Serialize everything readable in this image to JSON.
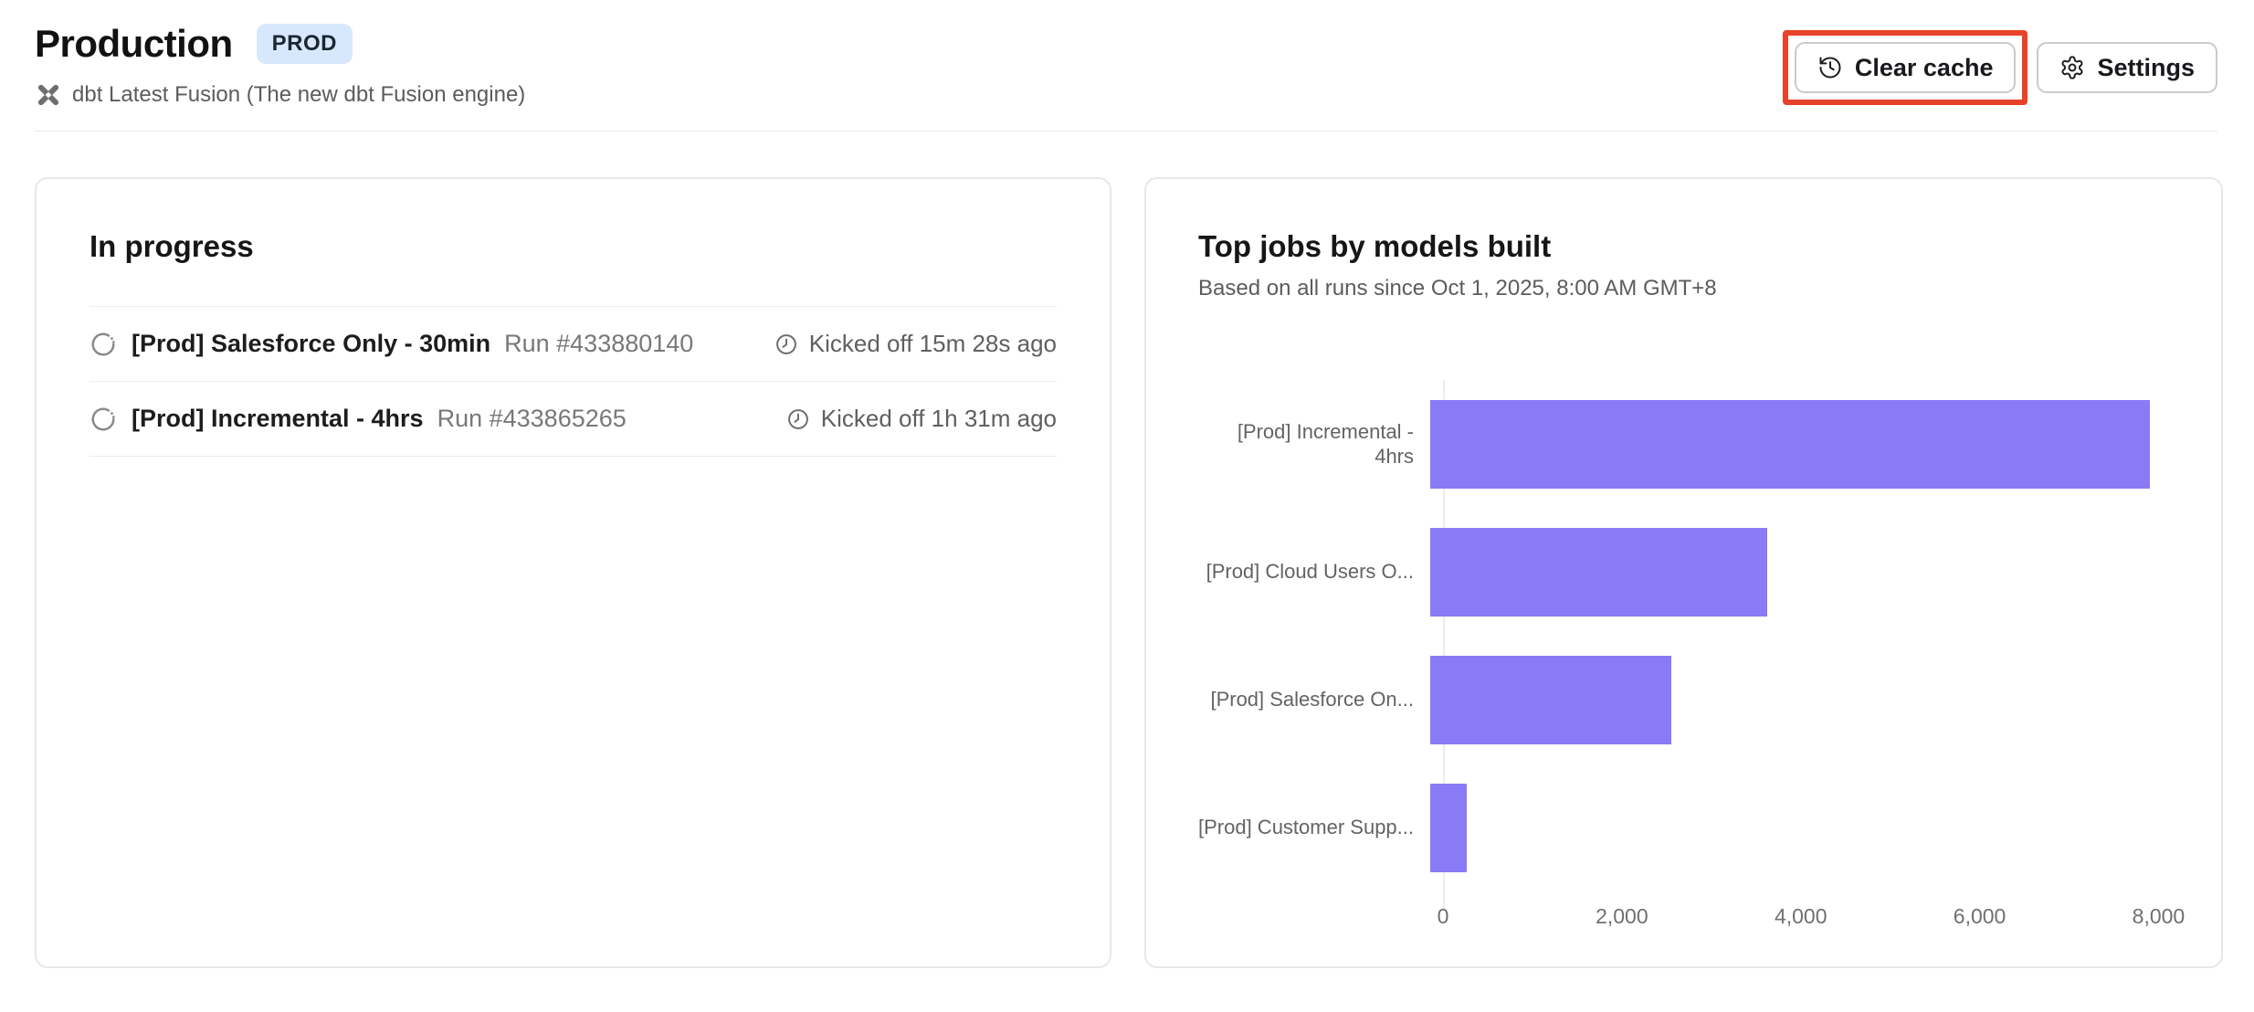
{
  "page": {
    "title": "Production",
    "badge": "PROD",
    "subtitle": "dbt Latest Fusion (The new dbt Fusion engine)"
  },
  "toolbar": {
    "clear_cache_label": "Clear cache",
    "settings_label": "Settings"
  },
  "in_progress": {
    "title": "In progress",
    "runs": [
      {
        "job_name": "[Prod] Salesforce Only - 30min",
        "run_number": "Run #433880140",
        "kicked_off": "Kicked off 15m 28s ago"
      },
      {
        "job_name": "[Prod] Incremental - 4hrs",
        "run_number": "Run #433865265",
        "kicked_off": "Kicked off 1h 31m ago"
      }
    ]
  },
  "chart": {
    "title": "Top jobs by models built",
    "subtitle": "Based on all runs since Oct 1, 2025, 8:00 AM GMT+8"
  },
  "chart_data": {
    "type": "bar",
    "orientation": "horizontal",
    "title": "Top jobs by models built",
    "categories": [
      "[Prod] Incremental - 4hrs",
      "[Prod] Cloud Users O...",
      "[Prod] Salesforce On...",
      "[Prod] Customer Supp..."
    ],
    "values": [
      7900,
      3700,
      2650,
      400
    ],
    "xlabel": "",
    "ylabel": "",
    "xticks": [
      0,
      2000,
      4000,
      6000,
      8000
    ],
    "xlim": [
      0,
      8700
    ],
    "grid": false,
    "legend": false,
    "bar_color": "#8b7af5"
  },
  "colors": {
    "bar_purple": "#8b7af5",
    "annotation_red": "#e8432a",
    "badge_bg": "#d8e8fc",
    "badge_text": "#1b2733"
  }
}
